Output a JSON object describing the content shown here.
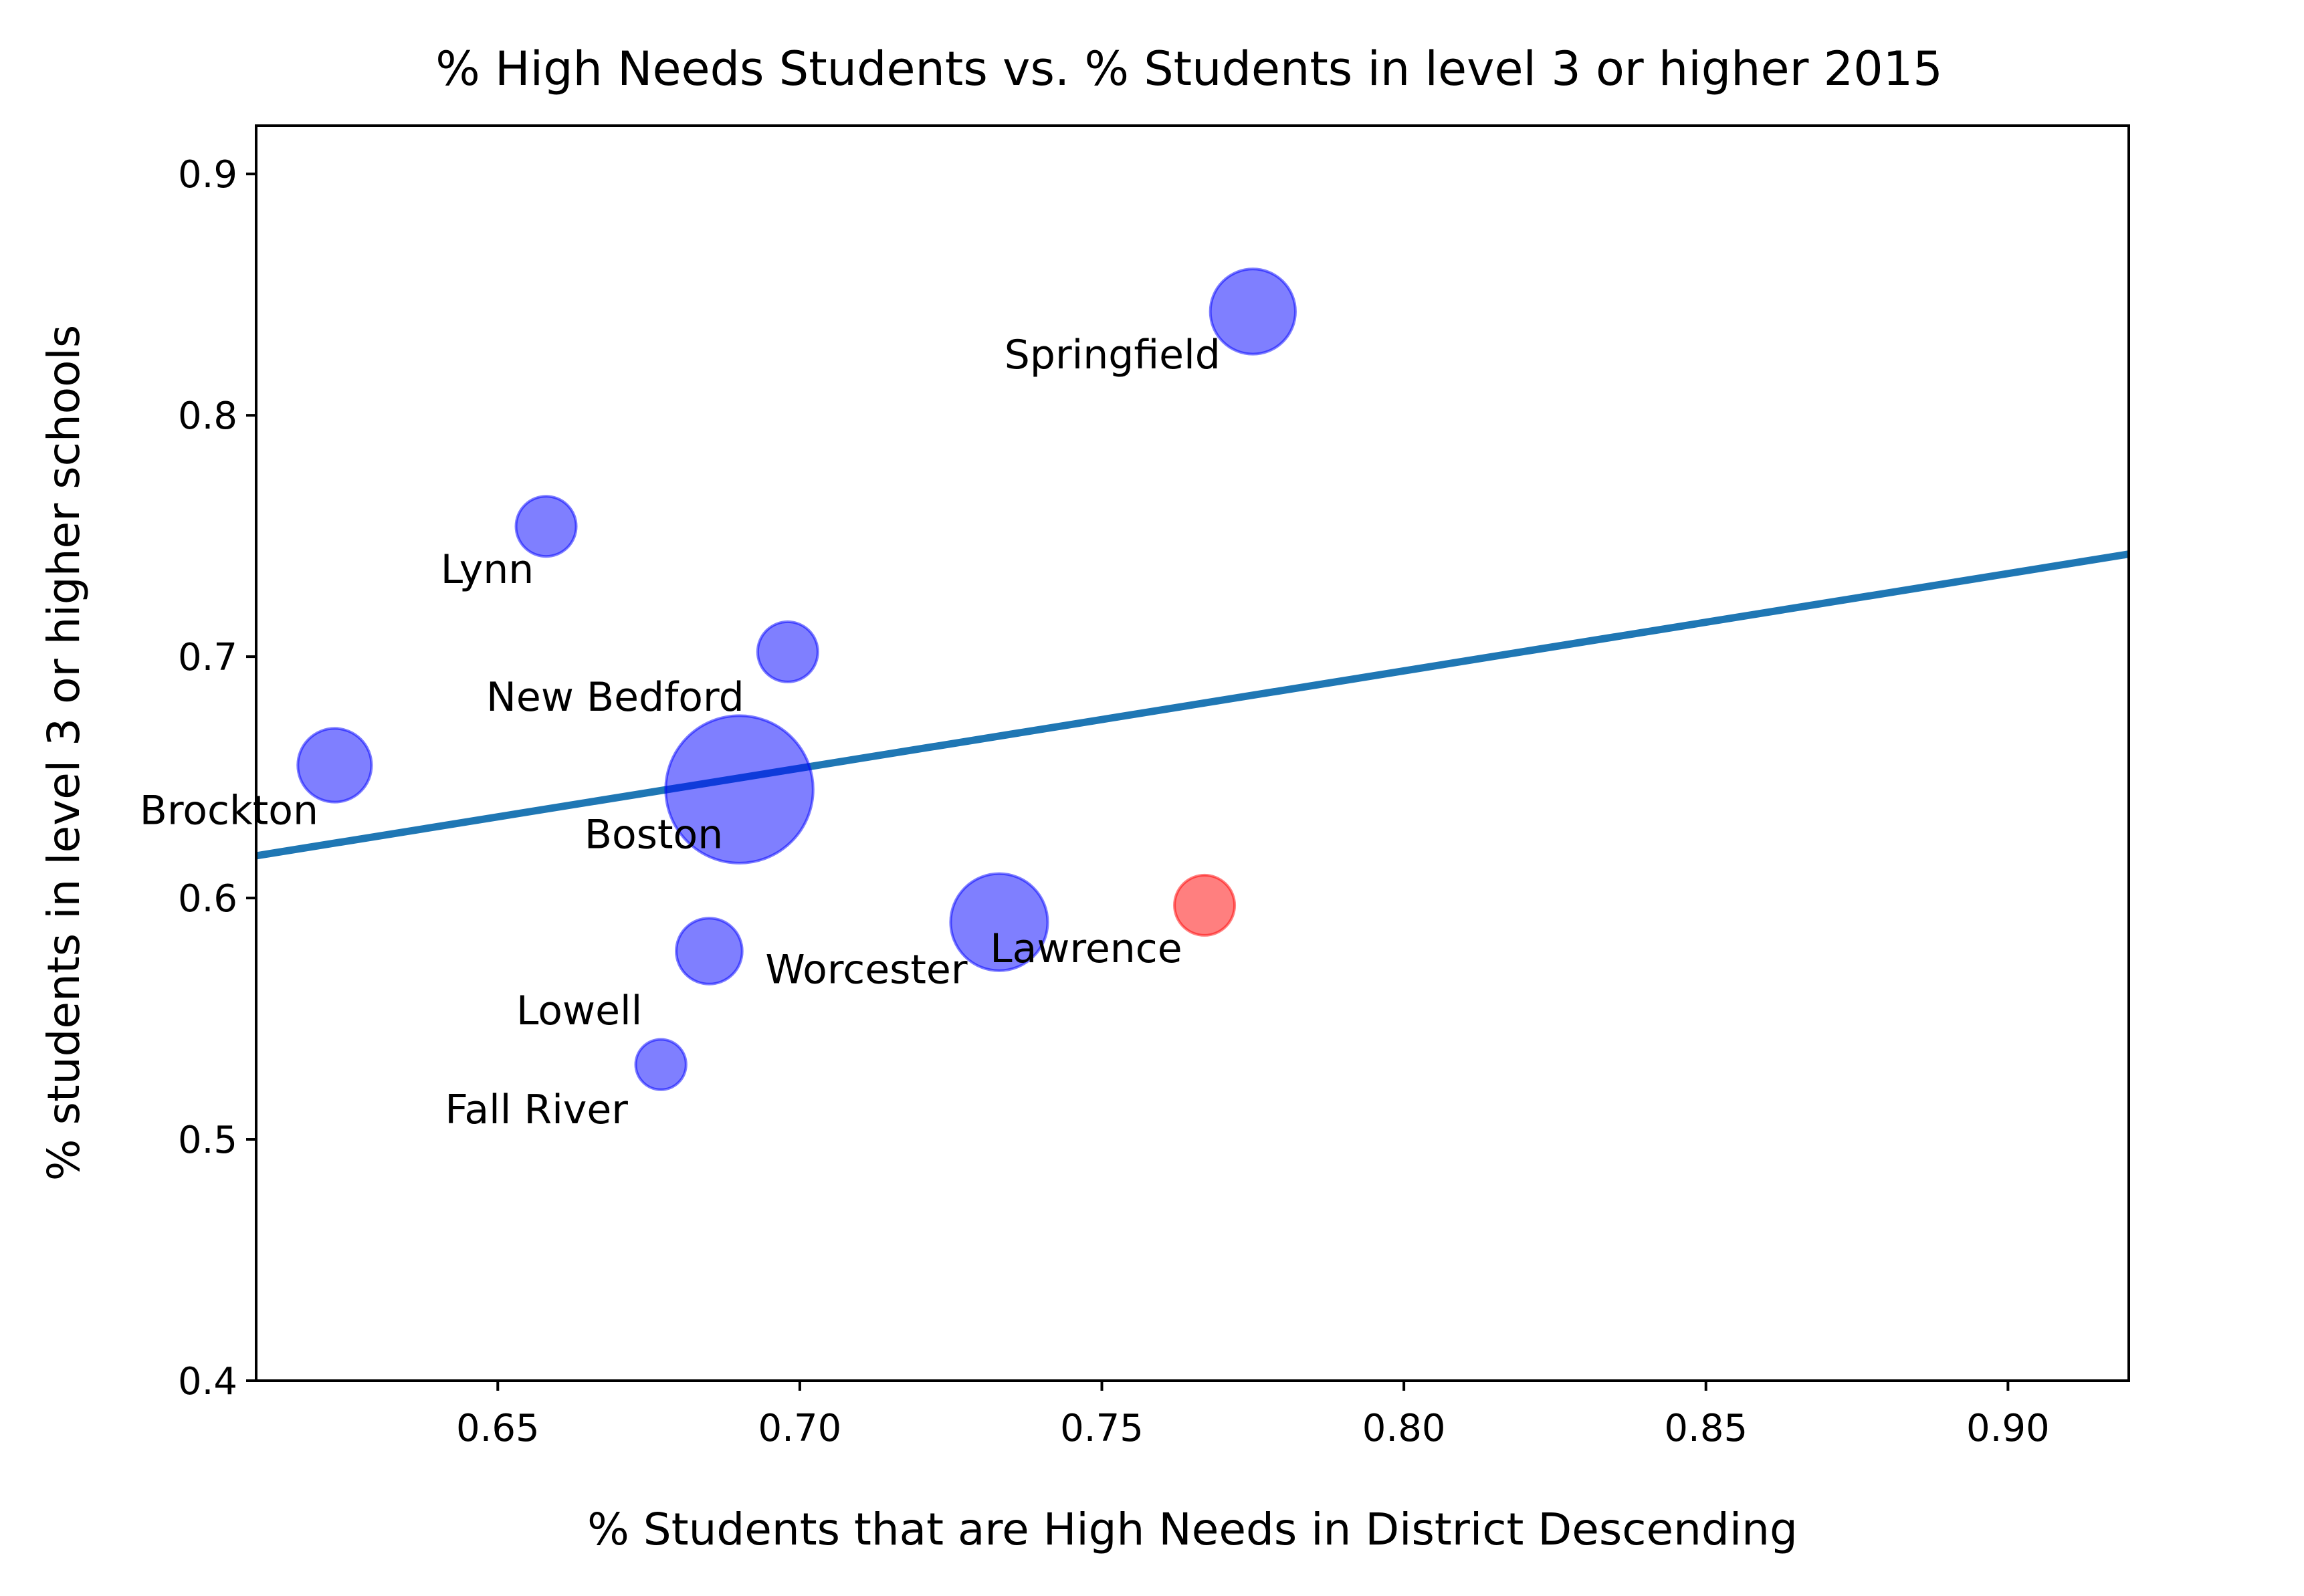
{
  "chart_data": {
    "type": "scatter",
    "title": "% High Needs Students vs. % Students in level 3 or higher 2015",
    "xlabel": "% Students that are High Needs in District Descending",
    "ylabel": "% students in level 3 or higher schools",
    "xlim": [
      0.61,
      0.92
    ],
    "ylim": [
      0.4,
      0.92
    ],
    "x_ticks": [
      "0.65",
      "0.70",
      "0.75",
      "0.80",
      "0.85",
      "0.90"
    ],
    "y_ticks": [
      "0.4",
      "0.5",
      "0.6",
      "0.7",
      "0.8",
      "0.9"
    ],
    "grid": false,
    "points": [
      {
        "label": "Springfield",
        "x": 0.775,
        "y": 0.843,
        "size": 2,
        "color": "#0000ff"
      },
      {
        "label": "Lynn",
        "x": 0.658,
        "y": 0.754,
        "size": 1,
        "color": "#0000ff"
      },
      {
        "label": "New Bedford",
        "x": 0.698,
        "y": 0.702,
        "size": 1,
        "color": "#0000ff"
      },
      {
        "label": "Brockton",
        "x": 0.623,
        "y": 0.655,
        "size": 1.5,
        "color": "#0000ff"
      },
      {
        "label": "Boston",
        "x": 0.69,
        "y": 0.645,
        "size": 6,
        "color": "#0000ff"
      },
      {
        "label": "Lawrence",
        "x": 0.733,
        "y": 0.59,
        "size": 2.6,
        "color": "#0000ff"
      },
      {
        "label": "",
        "x": 0.767,
        "y": 0.597,
        "size": 1,
        "color": "#ff0000"
      },
      {
        "label": "Worcester",
        "x": 0.685,
        "y": 0.578,
        "size": 1.2,
        "color": "#0000ff"
      },
      {
        "label": "Lowell",
        "x": 0.677,
        "y": 0.531,
        "size": 0.7,
        "color": "#0000ff"
      },
      {
        "label": "Fall River",
        "x": null,
        "y": null,
        "size": 0,
        "color": "#0000ff"
      }
    ],
    "trend_line": {
      "x": [
        0.61,
        0.92
      ],
      "y": [
        0.6175,
        0.7425
      ],
      "color": "#1f77b4"
    }
  }
}
